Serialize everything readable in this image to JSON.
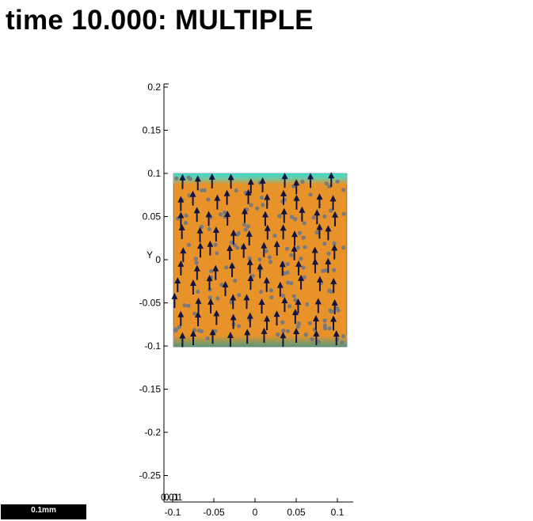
{
  "title": "time 10.000: MULTIPLE",
  "scale_bar": {
    "label": "0.1mm"
  },
  "axes": {
    "y_axis_label": "Y",
    "y_ticks": [
      "0.2",
      "0.15",
      "0.1",
      "0.05",
      "0",
      "-0.05",
      "-0.1",
      "-0.15",
      "-0.2",
      "-0.25"
    ],
    "x_ticks": [
      "-0.1",
      "-0.05",
      "0",
      "0.05",
      "0.1"
    ],
    "x_overlap_label": "0.01"
  },
  "colors": {
    "domain_fill": "#e8922a",
    "top_band": "#40d8c8",
    "bottom_band": "#5a9478",
    "arrow": "#141440",
    "particle": "#7a7a7a"
  },
  "chart_data": {
    "type": "scatter",
    "description_note": "",
    "domain": {
      "x_range": [
        -0.1,
        0.1
      ],
      "y_range": [
        -0.1,
        0.1
      ]
    },
    "x_range": [
      -0.1,
      0.11
    ],
    "y_range": [
      -0.28,
      0.21
    ],
    "vector_field": {
      "direction": "up"
    },
    "particles": {
      "count_visible": 150
    }
  }
}
